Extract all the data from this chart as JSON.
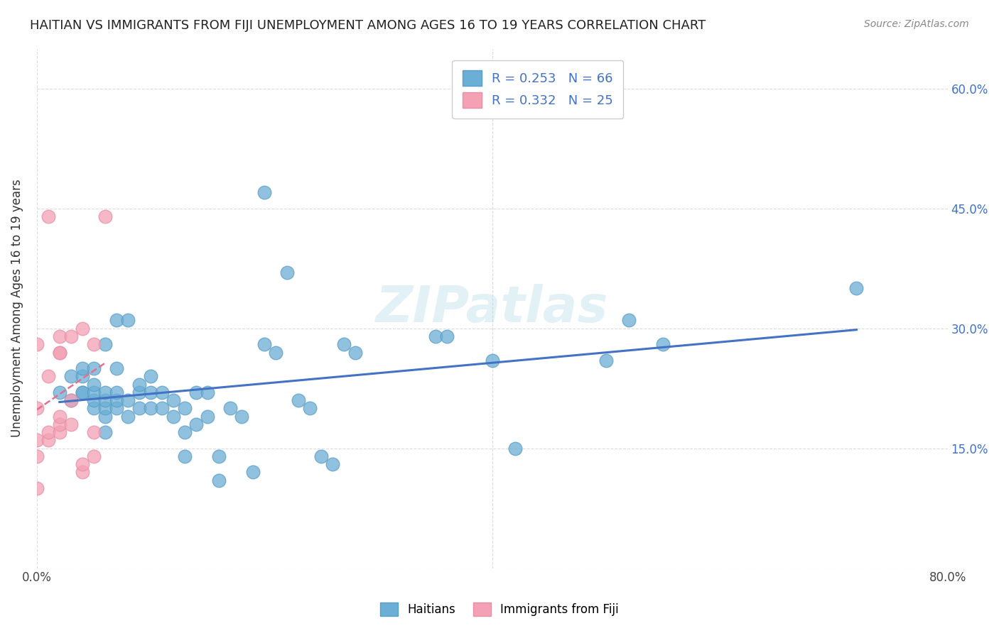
{
  "title": "HAITIAN VS IMMIGRANTS FROM FIJI UNEMPLOYMENT AMONG AGES 16 TO 19 YEARS CORRELATION CHART",
  "source": "Source: ZipAtlas.com",
  "ylabel": "Unemployment Among Ages 16 to 19 years",
  "xlabel": "",
  "xlim": [
    0.0,
    0.8
  ],
  "ylim": [
    0.0,
    0.65
  ],
  "y_ticks": [
    0.0,
    0.15,
    0.3,
    0.45,
    0.6
  ],
  "y_tick_labels_right": [
    "",
    "15.0%",
    "30.0%",
    "45.0%",
    "60.0%"
  ],
  "haitian_color": "#6baed6",
  "fiji_color": "#f4a0b5",
  "haitian_edge": "#5a9ec5",
  "fiji_edge": "#e88fa5",
  "trend_haitian_color": "#4472C4",
  "trend_fiji_color": "#e07090",
  "R_haitian": 0.253,
  "N_haitian": 66,
  "R_fiji": 0.332,
  "N_fiji": 25,
  "haitian_x": [
    0.02,
    0.03,
    0.03,
    0.04,
    0.04,
    0.04,
    0.04,
    0.05,
    0.05,
    0.05,
    0.05,
    0.05,
    0.06,
    0.06,
    0.06,
    0.06,
    0.06,
    0.06,
    0.07,
    0.07,
    0.07,
    0.07,
    0.07,
    0.08,
    0.08,
    0.08,
    0.09,
    0.09,
    0.09,
    0.1,
    0.1,
    0.1,
    0.11,
    0.11,
    0.12,
    0.12,
    0.13,
    0.13,
    0.13,
    0.14,
    0.14,
    0.15,
    0.15,
    0.16,
    0.16,
    0.17,
    0.18,
    0.19,
    0.2,
    0.2,
    0.21,
    0.22,
    0.23,
    0.24,
    0.25,
    0.26,
    0.27,
    0.28,
    0.35,
    0.36,
    0.4,
    0.42,
    0.5,
    0.52,
    0.55,
    0.72
  ],
  "haitian_y": [
    0.22,
    0.21,
    0.24,
    0.22,
    0.22,
    0.24,
    0.25,
    0.2,
    0.21,
    0.22,
    0.23,
    0.25,
    0.17,
    0.19,
    0.2,
    0.21,
    0.22,
    0.28,
    0.2,
    0.21,
    0.22,
    0.25,
    0.31,
    0.19,
    0.21,
    0.31,
    0.2,
    0.22,
    0.23,
    0.2,
    0.22,
    0.24,
    0.2,
    0.22,
    0.19,
    0.21,
    0.14,
    0.17,
    0.2,
    0.18,
    0.22,
    0.19,
    0.22,
    0.11,
    0.14,
    0.2,
    0.19,
    0.12,
    0.47,
    0.28,
    0.27,
    0.37,
    0.21,
    0.2,
    0.14,
    0.13,
    0.28,
    0.27,
    0.29,
    0.29,
    0.26,
    0.15,
    0.26,
    0.31,
    0.28,
    0.35
  ],
  "fiji_x": [
    0.0,
    0.0,
    0.0,
    0.0,
    0.0,
    0.01,
    0.01,
    0.01,
    0.01,
    0.02,
    0.02,
    0.02,
    0.02,
    0.02,
    0.02,
    0.03,
    0.03,
    0.03,
    0.04,
    0.04,
    0.04,
    0.05,
    0.05,
    0.05,
    0.06
  ],
  "fiji_y": [
    0.1,
    0.14,
    0.16,
    0.2,
    0.28,
    0.16,
    0.17,
    0.24,
    0.44,
    0.17,
    0.18,
    0.19,
    0.27,
    0.27,
    0.29,
    0.18,
    0.21,
    0.29,
    0.12,
    0.13,
    0.3,
    0.14,
    0.17,
    0.28,
    0.44
  ],
  "watermark": "ZIPatlas",
  "background_color": "#ffffff",
  "grid_color": "#cccccc"
}
